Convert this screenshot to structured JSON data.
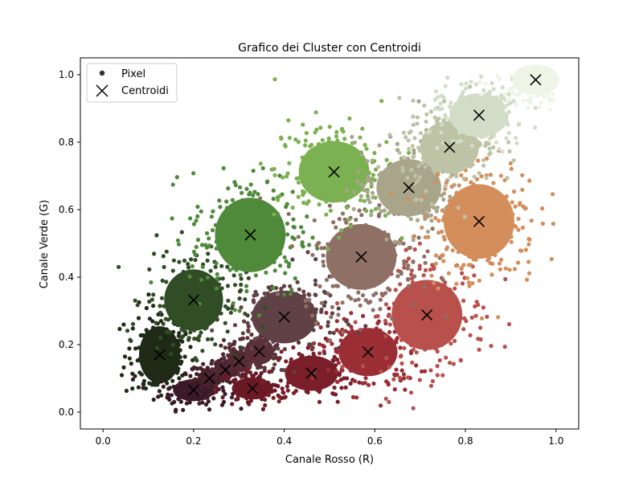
{
  "chart_data": {
    "type": "scatter",
    "title": "Grafico dei Cluster con Centroidi",
    "xlabel": "Canale Rosso (R)",
    "ylabel": "Canale Verde (G)",
    "xlim": [
      -0.05,
      1.05
    ],
    "ylim": [
      -0.05,
      1.05
    ],
    "xticks": [
      "0.0",
      "0.2",
      "0.4",
      "0.6",
      "0.8",
      "1.0"
    ],
    "yticks": [
      "0.0",
      "0.2",
      "0.4",
      "0.6",
      "0.8",
      "1.0"
    ],
    "grid": false,
    "legend": {
      "position": "top-left",
      "entries": [
        {
          "label": "Pixel",
          "marker": "dot",
          "color": "#3b2a2a"
        },
        {
          "label": "Centroidi",
          "marker": "x",
          "color": "#000000"
        }
      ]
    },
    "series": [
      {
        "name": "Centroidi",
        "marker": "x",
        "points": [
          {
            "x": 0.125,
            "y": 0.17,
            "color": "#1f2a17",
            "rx": 0.07,
            "ry": 0.13
          },
          {
            "x": 0.2,
            "y": 0.065,
            "color": "#3a1a26",
            "rx": 0.07,
            "ry": 0.05
          },
          {
            "x": 0.235,
            "y": 0.1,
            "color": "#47202c",
            "rx": 0.04,
            "ry": 0.04
          },
          {
            "x": 0.27,
            "y": 0.125,
            "color": "#4e2532",
            "rx": 0.04,
            "ry": 0.04
          },
          {
            "x": 0.3,
            "y": 0.15,
            "color": "#542a34",
            "rx": 0.04,
            "ry": 0.05
          },
          {
            "x": 0.345,
            "y": 0.18,
            "color": "#5a3039",
            "rx": 0.05,
            "ry": 0.06
          },
          {
            "x": 0.33,
            "y": 0.07,
            "color": "#6b1a25",
            "rx": 0.07,
            "ry": 0.05
          },
          {
            "x": 0.46,
            "y": 0.115,
            "color": "#7a1f29",
            "rx": 0.09,
            "ry": 0.08
          },
          {
            "x": 0.585,
            "y": 0.178,
            "color": "#9b2e35",
            "rx": 0.1,
            "ry": 0.11
          },
          {
            "x": 0.715,
            "y": 0.288,
            "color": "#b8504c",
            "rx": 0.12,
            "ry": 0.16
          },
          {
            "x": 0.4,
            "y": 0.282,
            "color": "#5f4146",
            "rx": 0.11,
            "ry": 0.12
          },
          {
            "x": 0.2,
            "y": 0.332,
            "color": "#304d25",
            "rx": 0.1,
            "ry": 0.14
          },
          {
            "x": 0.325,
            "y": 0.525,
            "color": "#4f8a3a",
            "rx": 0.12,
            "ry": 0.17
          },
          {
            "x": 0.57,
            "y": 0.46,
            "color": "#8e7065",
            "rx": 0.12,
            "ry": 0.15
          },
          {
            "x": 0.51,
            "y": 0.712,
            "color": "#7bb150",
            "rx": 0.12,
            "ry": 0.14
          },
          {
            "x": 0.675,
            "y": 0.665,
            "color": "#a8a58a",
            "rx": 0.11,
            "ry": 0.13
          },
          {
            "x": 0.83,
            "y": 0.565,
            "color": "#d48e5c",
            "rx": 0.12,
            "ry": 0.17
          },
          {
            "x": 0.765,
            "y": 0.785,
            "color": "#bfc3a6",
            "rx": 0.1,
            "ry": 0.12
          },
          {
            "x": 0.83,
            "y": 0.88,
            "color": "#d2ddc8",
            "rx": 0.1,
            "ry": 0.1
          },
          {
            "x": 0.955,
            "y": 0.985,
            "color": "#eef4e6",
            "rx": 0.08,
            "ry": 0.07
          }
        ]
      }
    ]
  }
}
